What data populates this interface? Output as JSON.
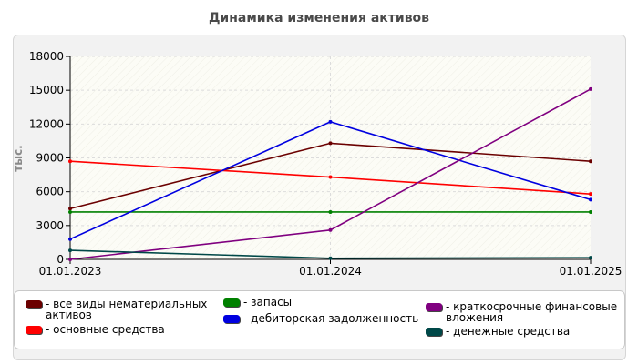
{
  "chart_data": {
    "type": "line",
    "title": "Динамика изменения активов",
    "ylabel": "тыс.",
    "xlabel": "",
    "ylim": [
      0,
      18000
    ],
    "yticks": [
      "18000",
      "15000",
      "12000",
      "9000",
      "6000",
      "3000",
      "0"
    ],
    "ytick_values": [
      18000,
      15000,
      12000,
      9000,
      6000,
      3000,
      0
    ],
    "categories": [
      "01.01.2023",
      "01.01.2024",
      "01.01.2025"
    ],
    "grid": true,
    "legend_position": "bottom",
    "series": [
      {
        "name": "- все виды нематериальных активов",
        "color": "#6b0000",
        "values": [
          4500,
          10300,
          8700
        ]
      },
      {
        "name": "- основные средства",
        "color": "#ff0000",
        "values": [
          8700,
          7300,
          5800
        ]
      },
      {
        "name": "- запасы",
        "color": "#008000",
        "values": [
          4200,
          4200,
          4200
        ]
      },
      {
        "name": "- дебиторская задолженность",
        "color": "#0000e0",
        "values": [
          1800,
          12200,
          5300
        ]
      },
      {
        "name": "- краткосрочные финансовые вложения",
        "color": "#800080",
        "values": [
          0,
          2600,
          15100
        ]
      },
      {
        "name": "- денежные средства",
        "color": "#004848",
        "values": [
          800,
          100,
          150
        ]
      }
    ]
  }
}
